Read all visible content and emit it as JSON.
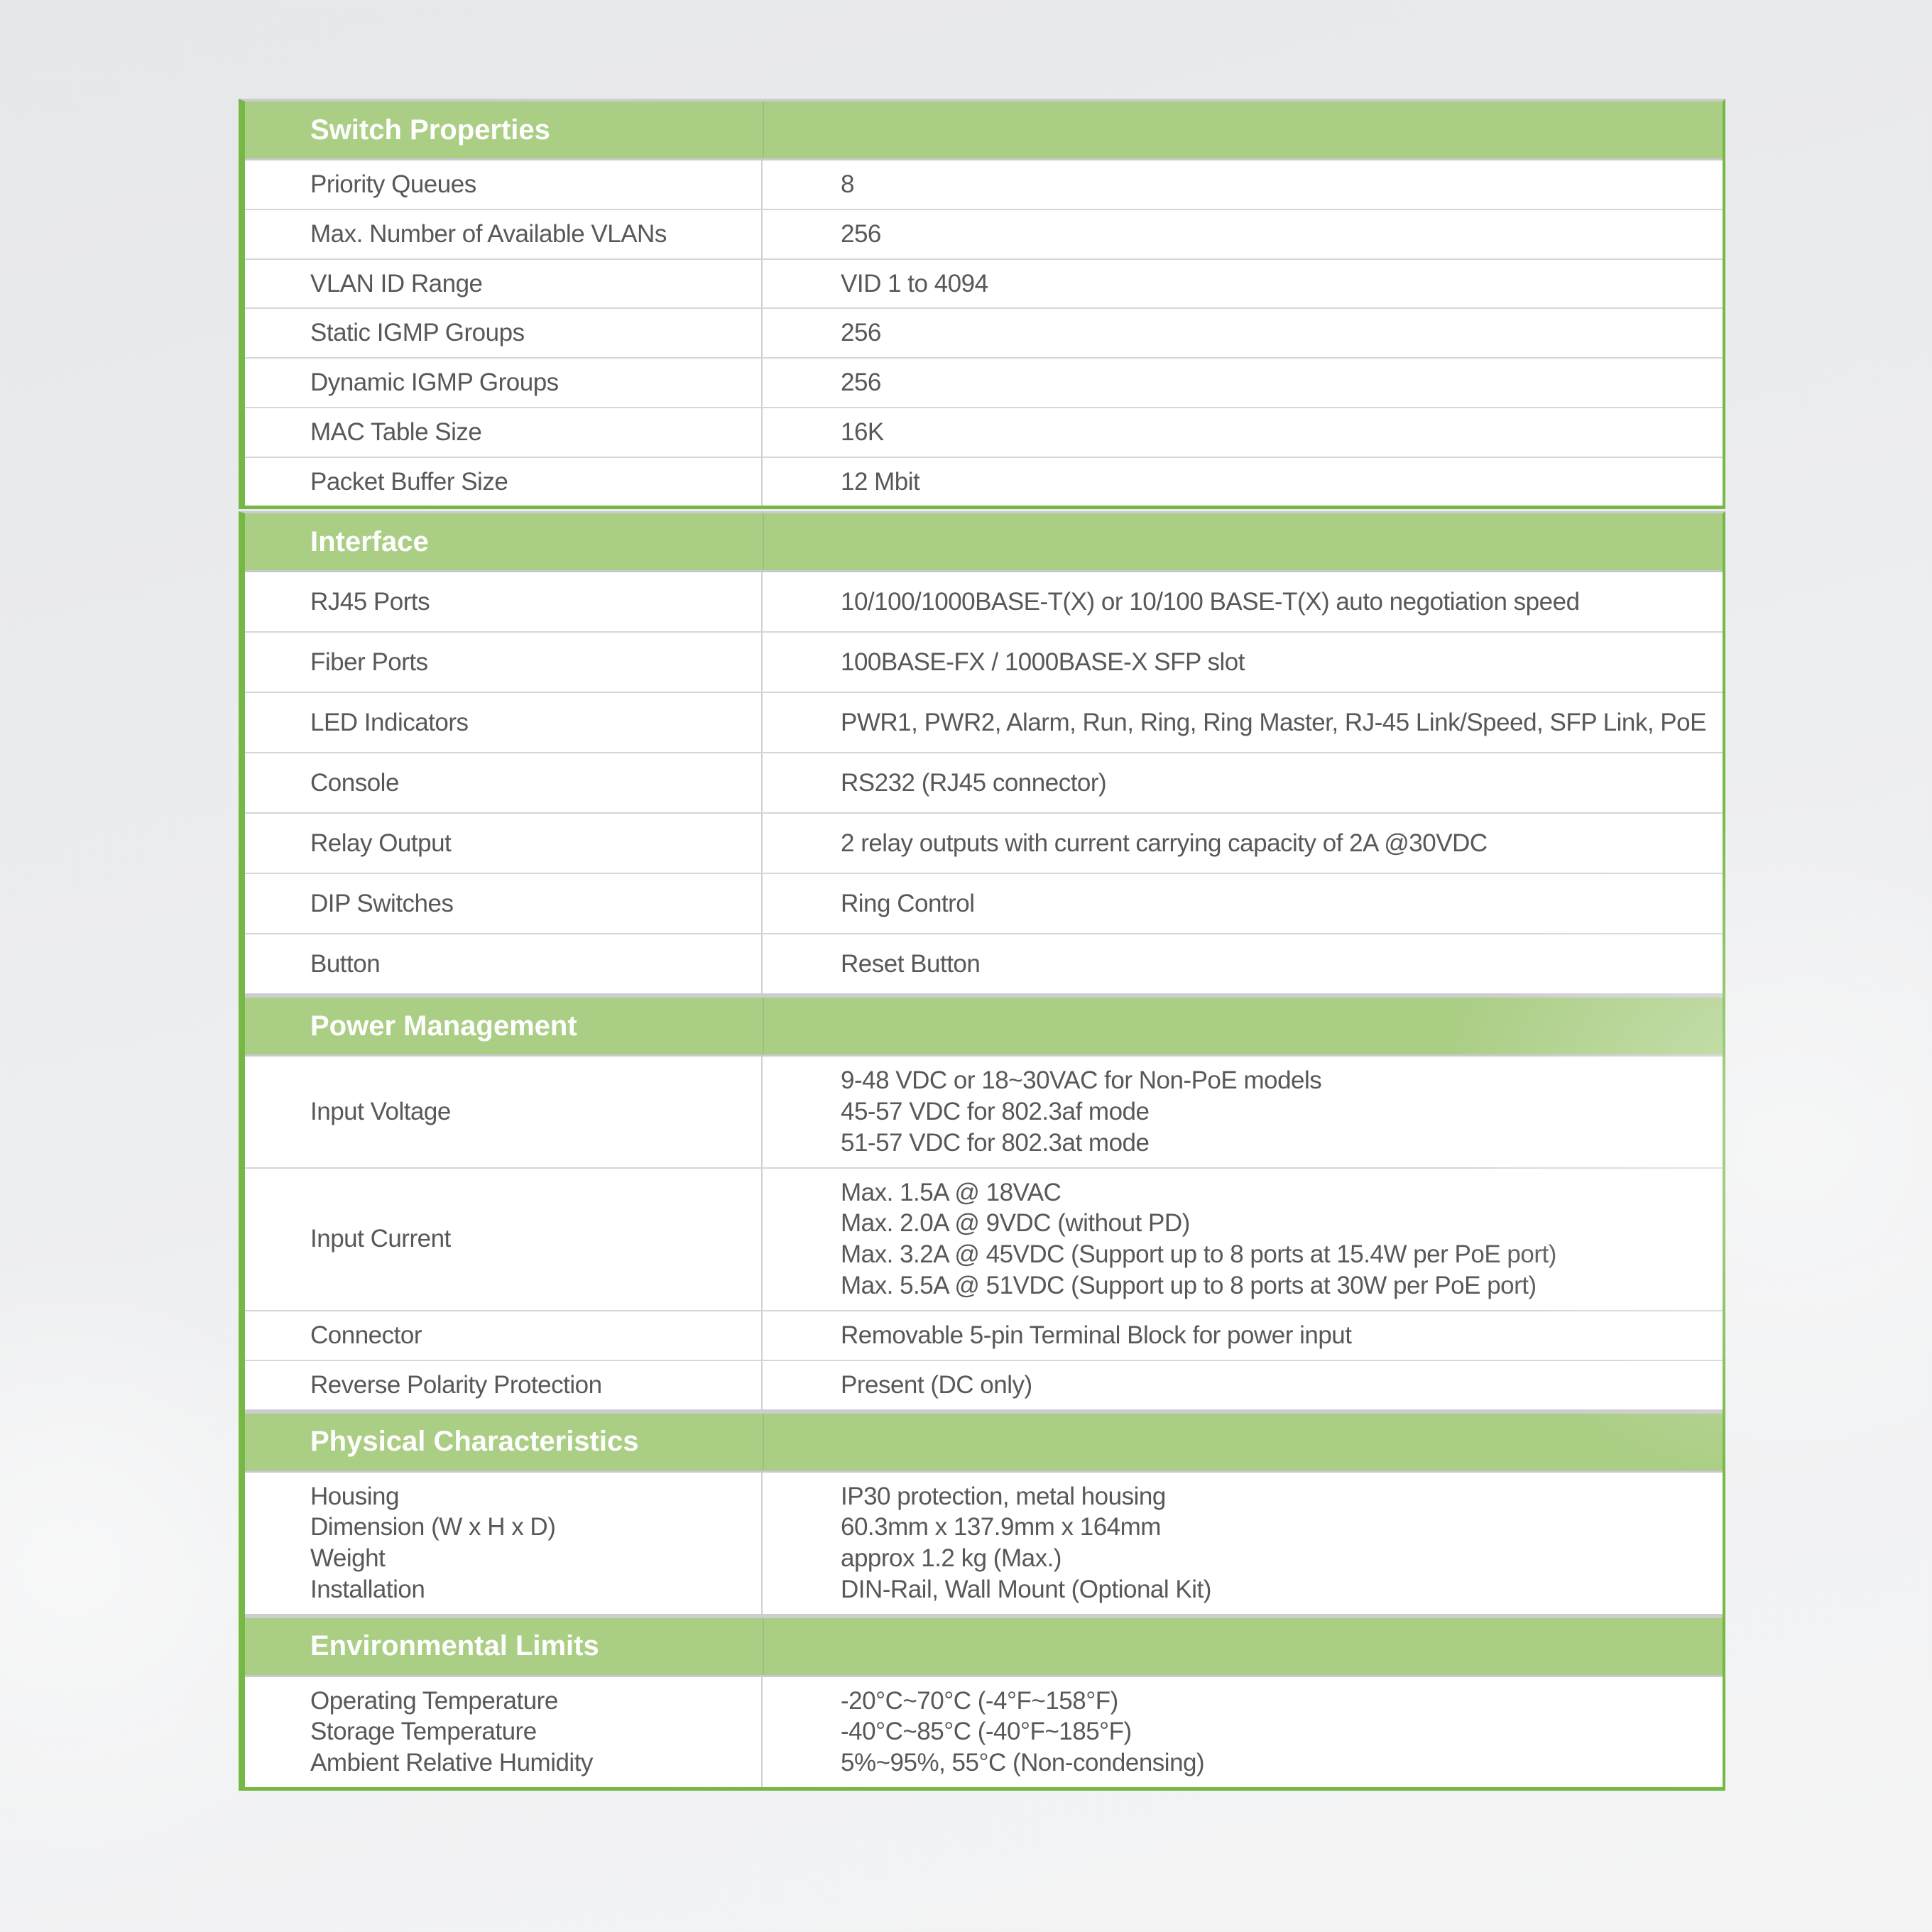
{
  "colors": {
    "accent_green_border": "#76b845",
    "section_header_green": "#abce85",
    "section_header_text": "#ffffff",
    "body_text": "#57585a",
    "row_divider_gray": "#d5d6d8"
  },
  "table": {
    "sections": [
      {
        "title": "Switch Properties",
        "rows": [
          {
            "label": [
              "Priority Queues"
            ],
            "value": [
              "8"
            ]
          },
          {
            "label": [
              "Max. Number of Available VLANs"
            ],
            "value": [
              "256"
            ]
          },
          {
            "label": [
              "VLAN ID Range"
            ],
            "value": [
              "VID 1 to 4094"
            ]
          },
          {
            "label": [
              "Static IGMP Groups"
            ],
            "value": [
              "256"
            ]
          },
          {
            "label": [
              "Dynamic IGMP Groups"
            ],
            "value": [
              "256"
            ]
          },
          {
            "label": [
              "MAC Table Size"
            ],
            "value": [
              "16K"
            ]
          },
          {
            "label": [
              "Packet Buffer Size"
            ],
            "value": [
              "12 Mbit"
            ]
          }
        ]
      },
      {
        "title": "Interface",
        "rows": [
          {
            "label": [
              "RJ45 Ports"
            ],
            "value": [
              "10/100/1000BASE-T(X) or 10/100 BASE-T(X) auto negotiation speed"
            ]
          },
          {
            "label": [
              "Fiber Ports"
            ],
            "value": [
              "100BASE-FX / 1000BASE-X SFP slot"
            ]
          },
          {
            "label": [
              "LED Indicators"
            ],
            "value": [
              "PWR1, PWR2, Alarm, Run, Ring, Ring Master, RJ-45 Link/Speed, SFP Link, PoE"
            ]
          },
          {
            "label": [
              "Console"
            ],
            "value": [
              "RS232 (RJ45 connector)"
            ]
          },
          {
            "label": [
              "Relay Output"
            ],
            "value": [
              "2 relay outputs with current carrying capacity of 2A @30VDC"
            ]
          },
          {
            "label": [
              "DIP Switches"
            ],
            "value": [
              "Ring Control"
            ]
          },
          {
            "label": [
              "Button"
            ],
            "value": [
              "Reset Button"
            ]
          }
        ]
      },
      {
        "title": "Power Management",
        "rows": [
          {
            "label": [
              "Input Voltage"
            ],
            "value": [
              "9-48 VDC or 18~30VAC for Non-PoE models",
              "45-57 VDC for 802.3af mode",
              "51-57 VDC for 802.3at mode"
            ]
          },
          {
            "label": [
              "Input Current"
            ],
            "value": [
              "Max. 1.5A @ 18VAC",
              "Max. 2.0A @ 9VDC (without PD)",
              "Max. 3.2A @ 45VDC (Support up to 8 ports at 15.4W per PoE port)",
              "Max. 5.5A @ 51VDC (Support up to 8 ports at 30W per PoE port)"
            ]
          },
          {
            "label": [
              "Connector"
            ],
            "value": [
              "Removable 5-pin Terminal Block for power input"
            ]
          },
          {
            "label": [
              "Reverse Polarity Protection"
            ],
            "value": [
              "Present (DC only)"
            ]
          }
        ]
      },
      {
        "title": "Physical Characteristics",
        "rows": [
          {
            "label": [
              "Housing",
              "Dimension (W x H x D)",
              "Weight",
              "Installation"
            ],
            "value": [
              "IP30 protection, metal housing",
              "60.3mm x 137.9mm x 164mm",
              "approx 1.2 kg (Max.)",
              "DIN-Rail, Wall Mount (Optional Kit)"
            ]
          }
        ]
      },
      {
        "title": "Environmental Limits",
        "rows": [
          {
            "label": [
              "Operating Temperature",
              "Storage Temperature",
              "Ambient Relative Humidity"
            ],
            "value": [
              "-20°C~70°C (-4°F~158°F)",
              "-40°C~85°C (-40°F~185°F)",
              "5%~95%, 55°C (Non-condensing)"
            ]
          }
        ]
      }
    ]
  }
}
